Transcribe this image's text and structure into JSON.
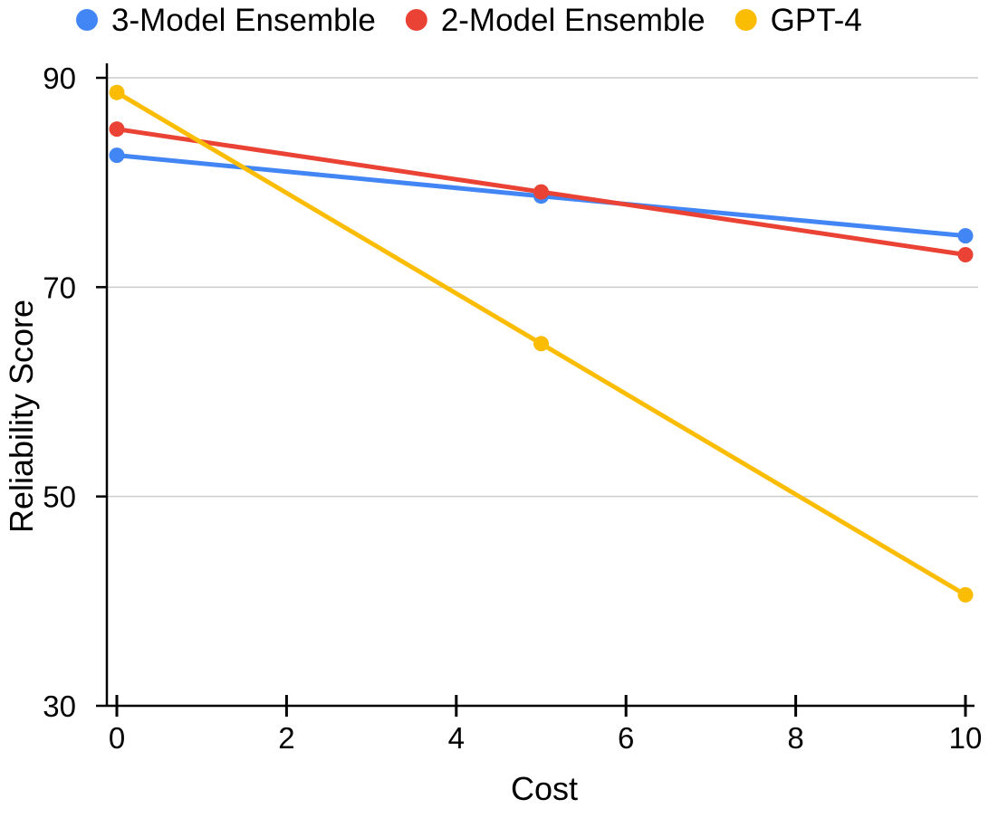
{
  "chart_data": {
    "type": "line",
    "title": "",
    "xlabel": "Cost",
    "ylabel": "Reliability Score",
    "xlim": [
      0,
      10
    ],
    "ylim": [
      30,
      90
    ],
    "xticks": [
      0,
      2,
      4,
      6,
      8,
      10
    ],
    "yticks": [
      30,
      50,
      70,
      90
    ],
    "grid": true,
    "legend_position": "top",
    "series": [
      {
        "name": "3-Model Ensemble",
        "color": "#4285F4",
        "x": [
          0,
          5,
          10
        ],
        "y": [
          82.6,
          78.7,
          74.9
        ]
      },
      {
        "name": "2-Model Ensemble",
        "color": "#EA4335",
        "x": [
          0,
          5,
          10
        ],
        "y": [
          85.1,
          79.1,
          73.1
        ]
      },
      {
        "name": "GPT-4",
        "color": "#FBBC04",
        "x": [
          0,
          5,
          10
        ],
        "y": [
          88.6,
          64.6,
          40.6
        ]
      }
    ]
  }
}
